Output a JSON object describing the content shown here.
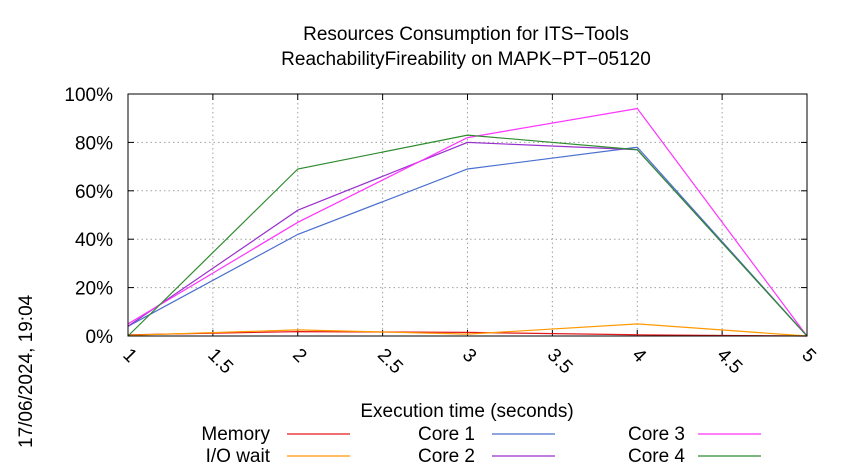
{
  "chart_data": {
    "type": "line",
    "title": "Resources Consumption for ITS−Tools",
    "subtitle": "ReachabilityFireability on MAPK−PT−05120",
    "xlabel": "Execution time (seconds)",
    "ylabel": "",
    "side_label": "17/06/2024, 19:04",
    "xlim": [
      1,
      5
    ],
    "ylim": [
      0,
      100
    ],
    "x_ticks": [
      {
        "value": 1,
        "label": "1"
      },
      {
        "value": 1.5,
        "label": "1.5"
      },
      {
        "value": 2,
        "label": "2"
      },
      {
        "value": 2.5,
        "label": "2.5"
      },
      {
        "value": 3,
        "label": "3"
      },
      {
        "value": 3.5,
        "label": "3.5"
      },
      {
        "value": 4,
        "label": "4"
      },
      {
        "value": 4.5,
        "label": "4.5"
      },
      {
        "value": 5,
        "label": "5"
      }
    ],
    "y_ticks": [
      {
        "value": 0,
        "label": "0%"
      },
      {
        "value": 20,
        "label": "20%"
      },
      {
        "value": 40,
        "label": "40%"
      },
      {
        "value": 60,
        "label": "60%"
      },
      {
        "value": 80,
        "label": "80%"
      },
      {
        "value": 100,
        "label": "100%"
      }
    ],
    "grid": true,
    "legend_placement": "bottom",
    "series": [
      {
        "name": "Memory",
        "color": "#e41a1c",
        "x": [
          1,
          2,
          3,
          4,
          5
        ],
        "y": [
          0.5,
          1.8,
          1.5,
          0.5,
          0
        ]
      },
      {
        "name": "I/O wait",
        "color": "#ff9900",
        "x": [
          1,
          2,
          3,
          4,
          5
        ],
        "y": [
          0.3,
          2.5,
          0.8,
          5,
          0
        ]
      },
      {
        "name": "Core 1",
        "color": "#4a6fcf",
        "x": [
          1,
          2,
          3,
          4,
          5
        ],
        "y": [
          4,
          42,
          69,
          78,
          0
        ]
      },
      {
        "name": "Core 2",
        "color": "#9932cc",
        "x": [
          1,
          2,
          3,
          4,
          5
        ],
        "y": [
          4,
          52,
          80,
          77,
          0
        ]
      },
      {
        "name": "Core 3",
        "color": "#ff33ff",
        "x": [
          1,
          2,
          3,
          4,
          5
        ],
        "y": [
          5,
          47,
          82,
          94,
          0
        ]
      },
      {
        "name": "Core 4",
        "color": "#2e8b2e",
        "x": [
          1,
          2,
          3,
          4,
          5
        ],
        "y": [
          0,
          69,
          83,
          77,
          0
        ]
      }
    ]
  }
}
